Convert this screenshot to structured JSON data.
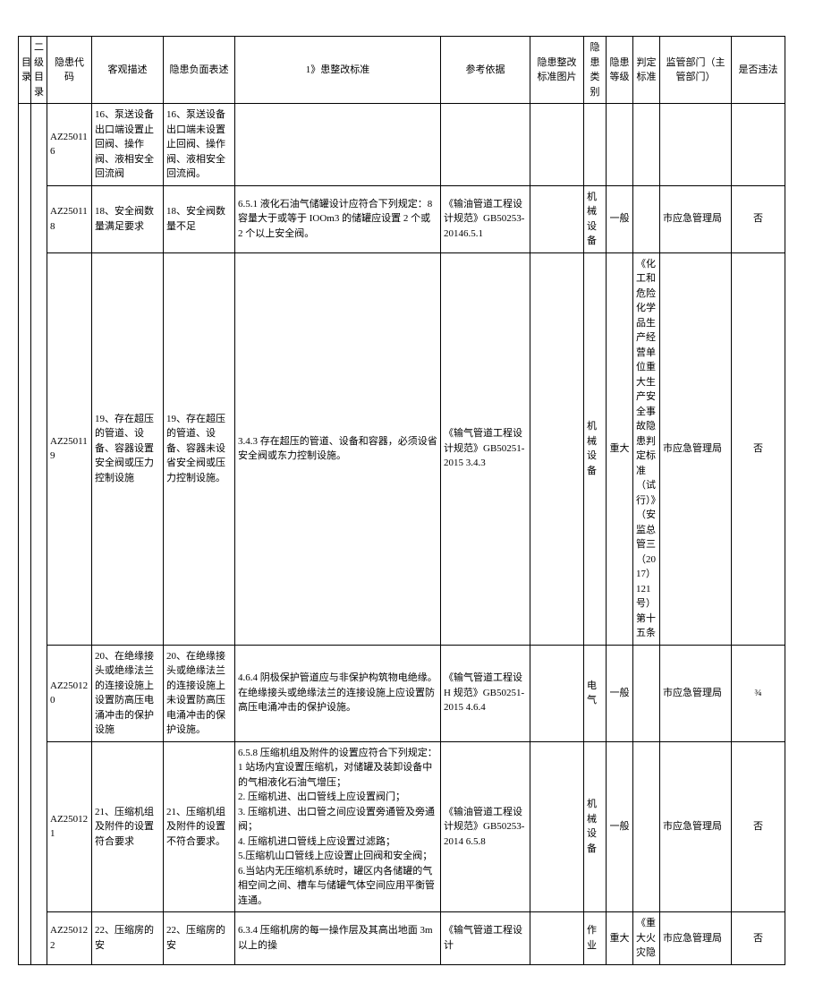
{
  "headers": {
    "c0": "目录",
    "c1": "二级目录",
    "c2": "隐患代码",
    "c3": "客观描述",
    "c4": "隐患负面表述",
    "c5": "1》患整改标准",
    "c6": "参考依据",
    "c7": "隐患整改标准图片",
    "c8": "隐患类别",
    "c9": "隐患等级",
    "c10": "判定标准",
    "c11": "监管部门（主管部门）",
    "c12": "是否违法"
  },
  "rows": [
    {
      "code": "AZ250116",
      "objective": "16、泵送设备出口端设置止回阀、操作阀、液相安全回流阀",
      "negative": "16、泵送设备出口端未设置止回阀、操作阀、液相安全回流阀。",
      "standard": "",
      "reference": "",
      "image": "",
      "category": "",
      "level": "",
      "criterion": "",
      "dept": "",
      "illegal": ""
    },
    {
      "code": "AZ250118",
      "objective": "18、安全阀数量满足要求",
      "negative": "18、安全阀数量不足",
      "standard": "6.5.1 液化石油气储罐设计应符合下列规定：8 容量大于或等于 IOOm3 的储罐应设置 2 个或 2 个以上安全阀。",
      "reference": "《输油管道工程设计规范》GB50253-20146.5.1",
      "image": "",
      "category": "机 械设备",
      "level": "一般",
      "criterion": "",
      "dept": "市应急管理局",
      "illegal": "否"
    },
    {
      "code": "AZ250119",
      "objective": "19、存在超压的管道、设备、容器设置安全阀或压力控制设施",
      "negative": "19、存在超压的管道、设备、容器未设省安全阀或压力控制设施。",
      "standard": "3.4.3 存在超压的管道、设备和容器，必须设省安全阀或东力控制设施。",
      "reference": "《输气管道工程设计规范》GB50251-2015 3.4.3",
      "image": "",
      "category": "机 械设备",
      "level": "重大",
      "criterion": "《化工和危险化学品生产经营单位重大生产安全事故隐患判定标准（试行）》（安监总管三（2017）121号）第十五条",
      "dept": "市应急管理局",
      "illegal": "否"
    },
    {
      "code": "AZ250120",
      "objective": "20、在绝缘接头或绝缘法兰的连接设施上设置防高压电涌冲击的保护设施",
      "negative": "20、在绝缘接头或绝缘法兰的连接设施上未设置防高压电涌冲击的保护设施。",
      "standard": "4.6.4 阴极保护管道应与非保护构筑物电绝缘。在绝缘接头或绝缘法兰的连接设施上应设置防高压电涌冲击的保护设施。",
      "reference": "《输气管道工程设 H 规范》GB50251-2015 4.6.4",
      "image": "",
      "category": "电气",
      "level": "一般",
      "criterion": "",
      "dept": "市应急管理局",
      "illegal": "¾"
    },
    {
      "code": "AZ250121",
      "objective": "21、压缩机组及附件的设置符合要求",
      "negative": "21、压缩机组及附件的设置不符合要求。",
      "standard": "6.5.8 压缩机组及附件的设置应符合下列规定：\n1 站场内宜设置压缩机，对储罐及装卸设备中的气相液化石油气增压；\n2. 压缩机进、出口管线上应设置阀门；\n3. 压缩机进、出口管之间应设置旁通管及旁通阀；\n4. 压缩机进口管线上应设置过滤路；\n5.压缩机山口管线上应设置止回阀和安全阀；\n6.当站内无压缩机系统时，罐区内各储罐的气相空间之间、槽车与储罐气体空间应用平衡管连通。",
      "reference": "《输油管道工程设计规范》GB50253-2014 6.5.8",
      "image": "",
      "category": "机 械设备",
      "level": "一般",
      "criterion": "",
      "dept": "市应急管理局",
      "illegal": "否"
    },
    {
      "code": "AZ250122",
      "objective": "22、压缩房的安",
      "negative": "22、压缩房的安",
      "standard": "6.3.4 压缩机房的每一操作层及其高出地面 3m 以上的操",
      "reference": "《输气管道工程设计",
      "image": "",
      "category": "作业",
      "level": "重大",
      "criterion": "《重大火灾隐",
      "dept": "市应急管理局",
      "illegal": "否"
    }
  ]
}
